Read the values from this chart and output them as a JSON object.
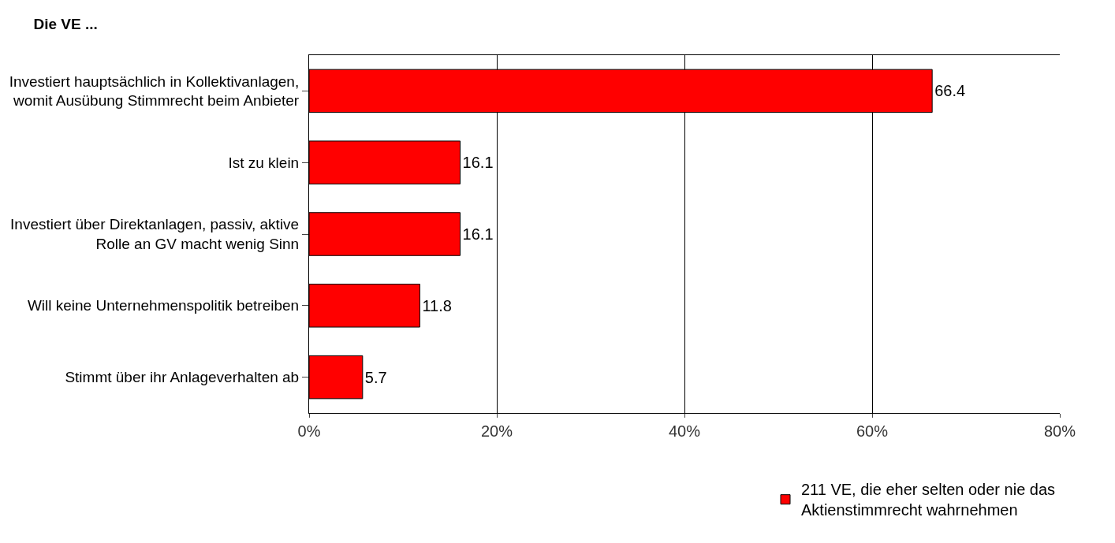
{
  "chart_data": {
    "type": "bar",
    "orientation": "horizontal",
    "title": "Die VE ...",
    "categories": [
      "Investiert hauptsächlich in Kollektivanlagen,\nwomit Ausübung Stimmrecht beim Anbieter",
      "Ist zu klein",
      "Investiert über Direktanlagen, passiv, aktive\nRolle an GV macht wenig Sinn",
      "Will keine Unternehmenspolitik betreiben",
      "Stimmt über ihr Anlageverhalten ab"
    ],
    "series": [
      {
        "name": "211 VE, die eher selten oder nie das\nAktienstimmrecht wahrnehmen",
        "color": "#ff0000",
        "values": [
          66.4,
          16.1,
          16.1,
          11.8,
          5.7
        ]
      }
    ],
    "xlim": [
      0,
      80
    ],
    "xticks": [
      {
        "value": 0,
        "label": "0%"
      },
      {
        "value": 20,
        "label": "20%"
      },
      {
        "value": 40,
        "label": "40%"
      },
      {
        "value": 60,
        "label": "60%"
      },
      {
        "value": 80,
        "label": "80%"
      }
    ],
    "grid": "x",
    "legend": "bottom right",
    "data_labels": true
  }
}
